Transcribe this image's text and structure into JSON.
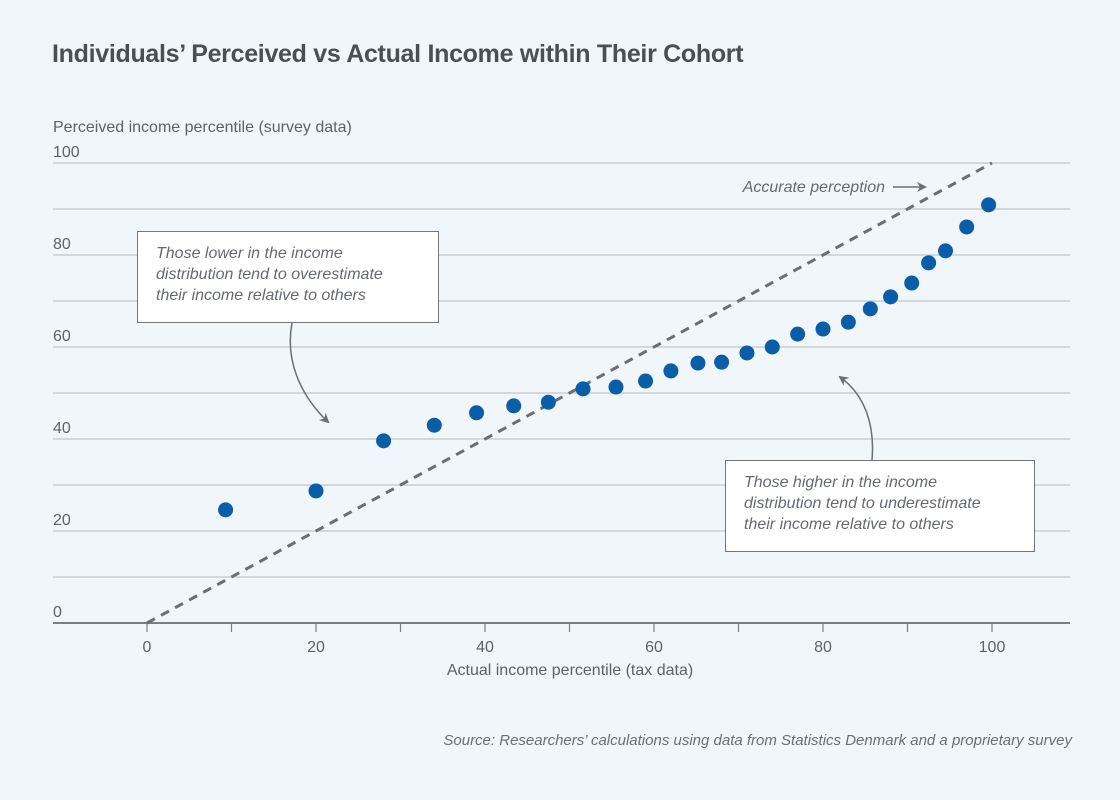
{
  "chart_data": {
    "type": "scatter",
    "title": "Individuals’ Perceived vs Actual Income within Their Cohort",
    "xlabel": "Actual income percentile (tax data)",
    "ylabel": "Perceived income percentile (survey data)",
    "xlim": [
      -10,
      110
    ],
    "ylim": [
      0,
      100
    ],
    "x_ticks": [
      0,
      10,
      20,
      30,
      40,
      50,
      60,
      70,
      80,
      90,
      100
    ],
    "x_tick_labels": [
      "0",
      "",
      "20",
      "",
      "40",
      "",
      "60",
      "",
      "80",
      "",
      "100"
    ],
    "y_gridlines": [
      0,
      10,
      20,
      30,
      40,
      50,
      60,
      70,
      80,
      90,
      100
    ],
    "y_tick_labels": [
      "0",
      "",
      "20",
      "",
      "40",
      "",
      "60",
      "",
      "80",
      "",
      "100"
    ],
    "grid": true,
    "series": [
      {
        "name": "Perceived income percentile",
        "color": "#0a5ea8",
        "points": [
          [
            9.3,
            24.6
          ],
          [
            20,
            28.7
          ],
          [
            28,
            39.6
          ],
          [
            34,
            43
          ],
          [
            39,
            45.7
          ],
          [
            43.4,
            47.2
          ],
          [
            47.5,
            48
          ],
          [
            51.6,
            50.9
          ],
          [
            55.5,
            51.3
          ],
          [
            59,
            52.6
          ],
          [
            62,
            54.8
          ],
          [
            65.2,
            56.5
          ],
          [
            68,
            56.7
          ],
          [
            71,
            58.7
          ],
          [
            74,
            60
          ],
          [
            77,
            62.8
          ],
          [
            80,
            63.9
          ],
          [
            83,
            65.4
          ],
          [
            85.6,
            68.3
          ],
          [
            88,
            70.9
          ],
          [
            90.5,
            73.9
          ],
          [
            92.5,
            78.3
          ],
          [
            94.5,
            80.9
          ],
          [
            97,
            86.1
          ],
          [
            99.6,
            90.9
          ]
        ]
      },
      {
        "name": "Accurate perception",
        "type": "line",
        "style": "dashed",
        "color": "#6c6e72",
        "points": [
          [
            0,
            0
          ],
          [
            100,
            100
          ]
        ]
      }
    ],
    "annotations": {
      "accurate_perception": "Accurate perception",
      "lower": [
        "Those lower in the income",
        "distribution tend to overestimate",
        "their income relative to others"
      ],
      "higher": [
        "Those higher in the income",
        "distribution tend to underestimate",
        "their income relative to others"
      ]
    },
    "source": "Source: Researchers’ calculations using data from Statistics Denmark and a proprietary survey"
  }
}
